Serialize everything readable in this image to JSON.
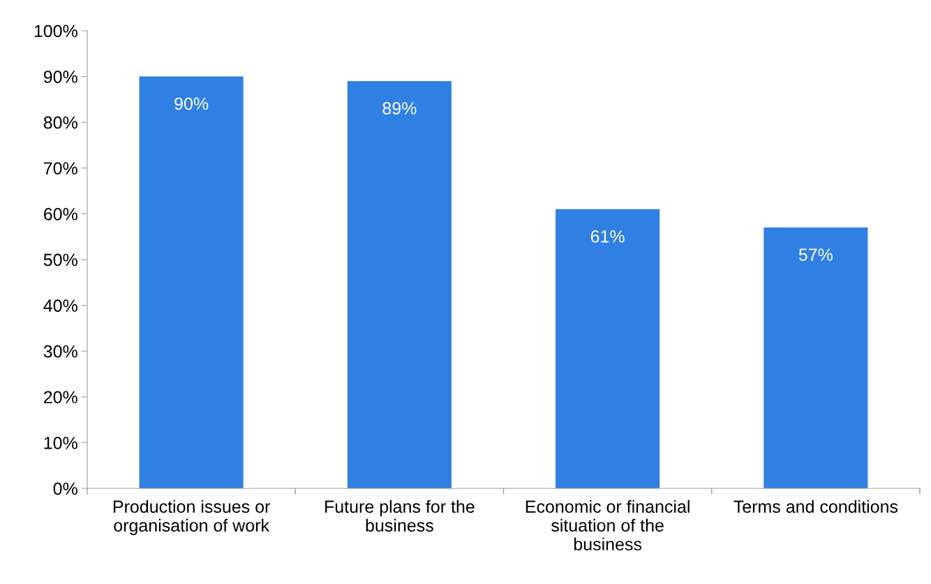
{
  "chart_data": {
    "type": "bar",
    "categories": [
      "Production issues or\norganisation of work",
      "Future plans for the\nbusiness",
      "Economic or financial\nsituation of the\nbusiness",
      "Terms and conditions"
    ],
    "values": [
      90,
      89,
      61,
      57
    ],
    "value_labels": [
      "90%",
      "89%",
      "61%",
      "57%"
    ],
    "color": "#2f80e2",
    "ylim": [
      0,
      100
    ],
    "yticks": [
      {
        "value": 0,
        "label": "0%"
      },
      {
        "value": 10,
        "label": "10%"
      },
      {
        "value": 20,
        "label": "20%"
      },
      {
        "value": 30,
        "label": "30%"
      },
      {
        "value": 40,
        "label": "40%"
      },
      {
        "value": 50,
        "label": "50%"
      },
      {
        "value": 60,
        "label": "60%"
      },
      {
        "value": 70,
        "label": "70%"
      },
      {
        "value": 80,
        "label": "80%"
      },
      {
        "value": 90,
        "label": "90%"
      },
      {
        "value": 100,
        "label": "100%"
      }
    ],
    "grid": false
  }
}
